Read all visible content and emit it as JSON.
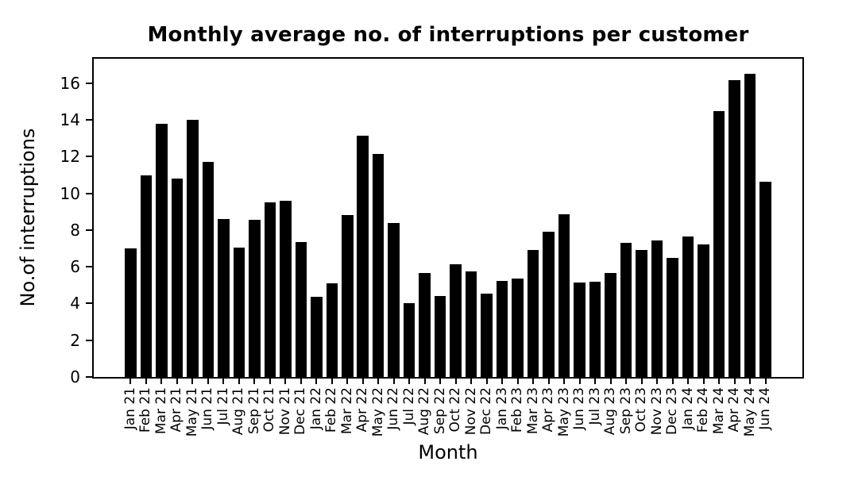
{
  "chart_data": {
    "type": "bar",
    "title": "Monthly average no. of interruptions per customer",
    "xlabel": "Month",
    "ylabel": "No.of interruptions",
    "categories": [
      "Jan 21",
      "Feb 21",
      "Mar 21",
      "Apr 21",
      "May 21",
      "Jun 21",
      "Jul 21",
      "Aug 21",
      "Sep 21",
      "Oct 21",
      "Nov 21",
      "Dec 21",
      "Jan 22",
      "Feb 22",
      "Mar 22",
      "Apr 22",
      "May 22",
      "Jun 22",
      "Jul 22",
      "Aug 22",
      "Sep 22",
      "Oct 22",
      "Nov 22",
      "Dec 22",
      "Jan 23",
      "Feb 23",
      "Mar 23",
      "Apr 23",
      "May 23",
      "Jun 23",
      "Jul 23",
      "Aug 23",
      "Sep 23",
      "Oct 23",
      "Nov 23",
      "Dec 23",
      "Jan 24",
      "Feb 24",
      "Mar 24",
      "Apr 24",
      "May 24",
      "Jun 24"
    ],
    "values": [
      7.0,
      11.0,
      13.8,
      10.8,
      14.0,
      11.7,
      8.6,
      7.05,
      8.55,
      9.5,
      9.6,
      7.35,
      4.35,
      5.1,
      8.8,
      13.15,
      12.15,
      8.4,
      4.0,
      5.65,
      4.4,
      6.15,
      5.75,
      4.55,
      5.25,
      5.35,
      6.9,
      7.9,
      8.85,
      5.15,
      5.2,
      5.65,
      7.3,
      6.9,
      7.45,
      6.5,
      7.65,
      7.2,
      14.5,
      16.15,
      16.5,
      10.65
    ],
    "yticks": [
      0,
      2,
      4,
      6,
      8,
      10,
      12,
      14,
      16
    ],
    "ylim": [
      0,
      17.33
    ],
    "grid": false,
    "legend": null,
    "bar_color": "#000000",
    "background_color": "#ffffff",
    "text_color": "#000000"
  }
}
